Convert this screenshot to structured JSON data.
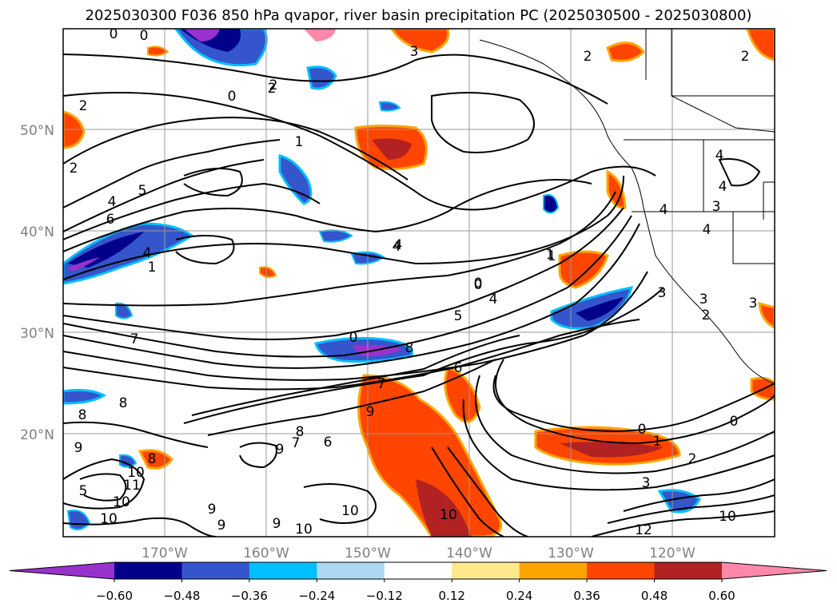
{
  "title": "2025030300 F036 850 hPa qvapor, river basin precipitation PC (2025030500 - 2025030800)",
  "map": {
    "lon_labels": [
      "170°W",
      "160°W",
      "150°W",
      "140°W",
      "130°W",
      "120°W"
    ],
    "lat_labels": [
      "50°N",
      "40°N",
      "30°N",
      "20°N"
    ],
    "contour_labels": [
      "0",
      "0",
      "3",
      "2",
      "2",
      "2",
      "2",
      "1",
      "4",
      "5",
      "6",
      "4",
      "1",
      "2",
      "7",
      "0",
      "4",
      "1",
      "0",
      "5",
      "4",
      "3",
      "6",
      "7",
      "8",
      "8",
      "8",
      "9",
      "7",
      "6",
      "9",
      "8",
      "9",
      "10",
      "11",
      "8",
      "5",
      "10",
      "10",
      "9",
      "9",
      "9",
      "10",
      "10",
      "10",
      "0",
      "0",
      "1",
      "2",
      "3",
      "12",
      "10",
      "4",
      "3",
      "4",
      "3",
      "3",
      "2",
      "4",
      "0",
      "2",
      "1",
      "0",
      "4",
      "4"
    ],
    "colors": {
      "neg_060": "#9932cc",
      "neg_048": "#00008b",
      "neg_036": "#3455cc",
      "neg_024": "#00bfff",
      "neg_012": "#add8f4",
      "zero": "#ffffff",
      "pos_012": "#ffe88c",
      "pos_024": "#ffa500",
      "pos_036": "#ff4500",
      "pos_048": "#b22222",
      "pos_060": "#ff88aa"
    }
  },
  "colorbar": {
    "tick_labels": [
      "−0.60",
      "−0.48",
      "−0.36",
      "−0.24",
      "−0.12",
      "0.12",
      "0.24",
      "0.36",
      "0.48",
      "0.60"
    ],
    "bins": [
      "#9932cc",
      "#00008b",
      "#3455cc",
      "#00bfff",
      "#add8f4",
      "#ffffff",
      "#ffe88c",
      "#ffa500",
      "#ff4500",
      "#b22222",
      "#ff88aa"
    ]
  }
}
